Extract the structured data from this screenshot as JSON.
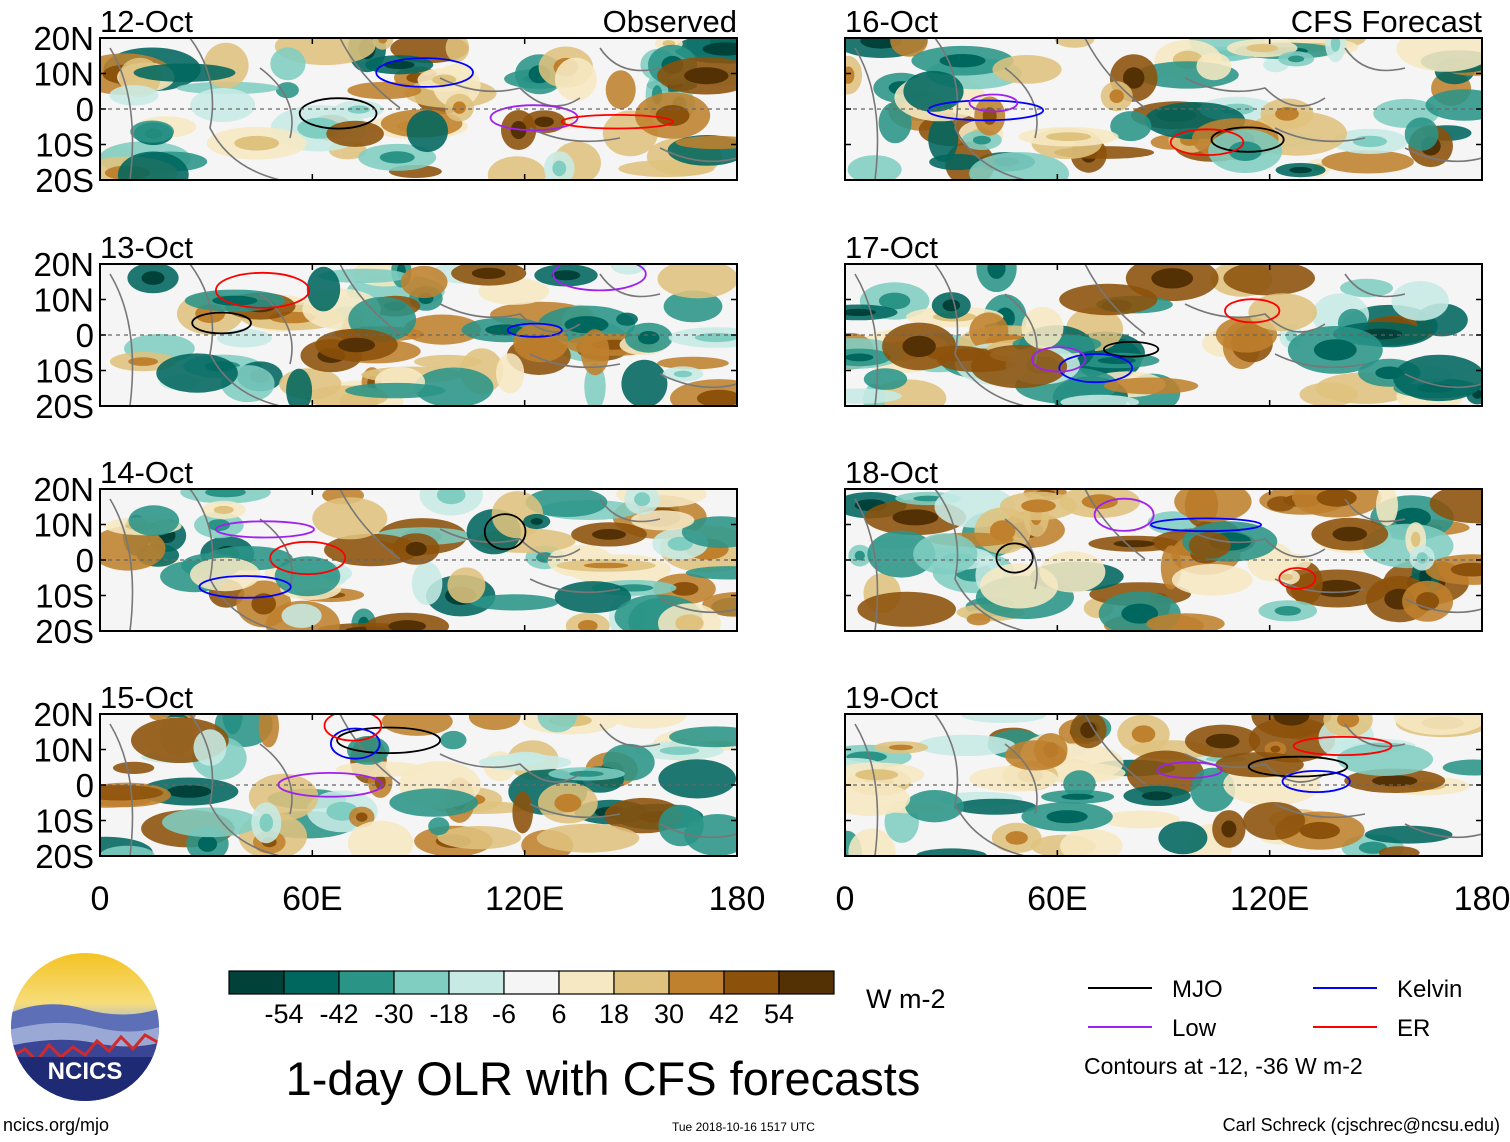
{
  "chart_data": {
    "type": "heatmap",
    "title": "1-day OLR with CFS forecasts",
    "columns": [
      {
        "header": "Observed",
        "panels": [
          "12-Oct",
          "13-Oct",
          "14-Oct",
          "15-Oct"
        ]
      },
      {
        "header": "CFS Forecast",
        "panels": [
          "16-Oct",
          "17-Oct",
          "18-Oct",
          "19-Oct"
        ]
      }
    ],
    "x_axis": {
      "ticks": [
        "0",
        "60E",
        "120E",
        "180"
      ],
      "values": [
        0,
        60,
        120,
        180
      ],
      "range": [
        0,
        180
      ]
    },
    "y_axis": {
      "ticks": [
        "20N",
        "10N",
        "0",
        "10S",
        "20S"
      ],
      "values": [
        20,
        10,
        0,
        -10,
        -20
      ],
      "range": [
        -20,
        20
      ]
    },
    "colorbar": {
      "units": "W m-2",
      "tick_labels": [
        "-54",
        "-42",
        "-30",
        "-18",
        "-6",
        "6",
        "18",
        "30",
        "42",
        "54"
      ],
      "colors": [
        "#00413a",
        "#00675e",
        "#2a9487",
        "#80cdc1",
        "#c7eae5",
        "#f5f5f5",
        "#f6e8c3",
        "#dfc27d",
        "#bf812d",
        "#8c510a",
        "#543005"
      ]
    },
    "legend": {
      "items": [
        {
          "label": "MJO",
          "color": "#000000"
        },
        {
          "label": "Kelvin",
          "color": "#0000ff"
        },
        {
          "label": "Low",
          "color": "#a020f0"
        },
        {
          "label": "ER",
          "color": "#ff0000"
        }
      ],
      "note": "Contours at -12, -36 W m-2"
    }
  },
  "footer": {
    "logo_text": "NCICS",
    "url": "ncics.org/mjo",
    "timestamp": "Tue 2018-10-16 1517 UTC",
    "author": "Carl Schreck (cjschrec@ncsu.edu)"
  }
}
